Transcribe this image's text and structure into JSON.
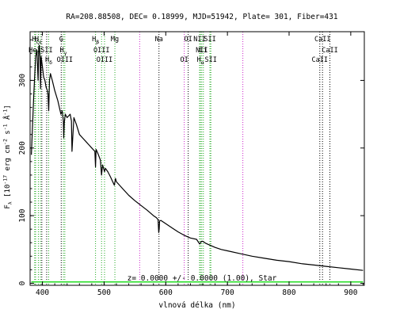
{
  "chart_data": {
    "type": "line",
    "title": "RA=208.88508, DEC= 0.18999, MJD=51942, Plate= 301, Fiber=431",
    "xlabel": "vlnová délka (nm)",
    "ylabel": "F_λ [10^-17 erg cm^-2 s^-1 Å^-1]",
    "ylabel_parts": [
      "F",
      "λ",
      " [10",
      "-17",
      " erg cm",
      "-2",
      " s",
      "-1",
      " Å",
      "-1",
      "]"
    ],
    "annotation": "z= 0.0000 +/- 0.0000 (1.00), Star",
    "xlim": [
      380,
      922
    ],
    "ylim": [
      -3,
      372
    ],
    "x_ticks": [
      400,
      500,
      600,
      700,
      800,
      900
    ],
    "y_ticks": [
      0,
      100,
      200,
      300
    ],
    "series": [
      {
        "color": "#000000",
        "x": [
          382,
          386,
          389,
          391,
          393,
          394,
          395,
          396,
          396.9,
          398,
          400,
          402,
          404,
          406,
          408,
          409,
          410.2,
          411.5,
          413,
          416,
          420,
          425,
          430,
          432,
          434,
          434.6,
          435.5,
          437,
          440,
          445,
          447,
          448,
          449,
          451,
          455,
          460,
          465,
          470,
          475,
          480,
          485,
          486.1,
          487,
          490,
          494,
          495.9,
          497.5,
          500.7,
          502,
          506,
          510,
          516.7,
          518.5,
          520,
          530,
          540,
          550,
          560,
          570,
          580,
          585,
          587.5,
          588.6,
          589.3,
          590,
          592,
          600,
          610,
          620,
          630,
          640,
          650,
          655,
          656.5,
          658,
          660,
          665,
          670,
          680,
          690,
          700,
          720,
          740,
          760,
          780,
          800,
          820,
          840,
          860,
          880,
          900,
          920
        ],
        "y": [
          190,
          280,
          335,
          345,
          300,
          345,
          352,
          335,
          288,
          335,
          320,
          305,
          300,
          290,
          285,
          280,
          255,
          300,
          310,
          300,
          285,
          270,
          250,
          255,
          240,
          215,
          238,
          250,
          245,
          250,
          240,
          195,
          212,
          245,
          235,
          220,
          215,
          210,
          205,
          200,
          195,
          172,
          198,
          192,
          182,
          160,
          175,
          165,
          170,
          165,
          158,
          145,
          155,
          150,
          140,
          130,
          122,
          115,
          108,
          100,
          97,
          94,
          75,
          80,
          92,
          93,
          88,
          82,
          76,
          71,
          67,
          65,
          58,
          60,
          62,
          62,
          59,
          57,
          53,
          50,
          48,
          44,
          40,
          37,
          34,
          32,
          29,
          27,
          25,
          23,
          21,
          19
        ]
      },
      {
        "color": "#22dd22",
        "x": [
          382,
          920
        ],
        "y": [
          2,
          2
        ]
      }
    ],
    "lines": [
      {
        "x": 388.9,
        "color": "#22aa22",
        "label": "H_ζ",
        "row": 0
      },
      {
        "x": 393.4,
        "color": "#22aa22",
        "label": "H_ε",
        "row": 0
      },
      {
        "x": 396.8,
        "color": "#22aa22",
        "label": "",
        "row": 0
      },
      {
        "x": 387.5,
        "color": "#22aa22",
        "label": "HeI",
        "row": 1
      },
      {
        "x": 399.0,
        "color": "#000000",
        "label": "",
        "row": 1
      },
      {
        "x": 406.9,
        "color": "#000000",
        "label": "SII",
        "row": 1
      },
      {
        "x": 410.2,
        "color": "#22aa22",
        "label": "H_δ",
        "row": 2
      },
      {
        "x": 430.5,
        "color": "#000000",
        "label": "G",
        "row": 0
      },
      {
        "x": 434.0,
        "color": "#22aa22",
        "label": "H_γ",
        "row": 1
      },
      {
        "x": 436.3,
        "color": "#22aa22",
        "label": "OIII",
        "row": 2
      },
      {
        "x": 486.1,
        "color": "#22aa22",
        "label": "H_β",
        "row": 0
      },
      {
        "x": 495.9,
        "color": "#22aa22",
        "label": "OIII",
        "row": 1
      },
      {
        "x": 500.7,
        "color": "#22aa22",
        "label": "OIII",
        "row": 2
      },
      {
        "x": 517.5,
        "color": "#22aa22",
        "label": "Mg",
        "row": 0
      },
      {
        "x": 557.7,
        "color": "#cc22cc",
        "label": "",
        "row": 0
      },
      {
        "x": 589.0,
        "color": "#000000",
        "label": "Na",
        "row": 0
      },
      {
        "x": 630.0,
        "color": "#cc22cc",
        "label": "OI",
        "row": 2
      },
      {
        "x": 636.4,
        "color": "#000000",
        "label": "OI",
        "row": 0
      },
      {
        "x": 654.8,
        "color": "#22aa22",
        "label": "NII",
        "row": 0
      },
      {
        "x": 656.3,
        "color": "#22aa22",
        "label": "H_α",
        "row": 2
      },
      {
        "x": 658.4,
        "color": "#22aa22",
        "label": "NII",
        "row": 1
      },
      {
        "x": 661.0,
        "color": "#22aa22",
        "label": "Li",
        "row": 1
      },
      {
        "x": 671.6,
        "color": "#22aa22",
        "label": "SII",
        "row": 0
      },
      {
        "x": 673.1,
        "color": "#22aa22",
        "label": "SII",
        "row": 2
      },
      {
        "x": 725.0,
        "color": "#cc22cc",
        "label": "",
        "row": 0
      },
      {
        "x": 849.8,
        "color": "#000000",
        "label": "CaII",
        "row": 2
      },
      {
        "x": 854.2,
        "color": "#000000",
        "label": "CaII",
        "row": 0
      },
      {
        "x": 866.2,
        "color": "#000000",
        "label": "CaII",
        "row": 1
      }
    ]
  }
}
